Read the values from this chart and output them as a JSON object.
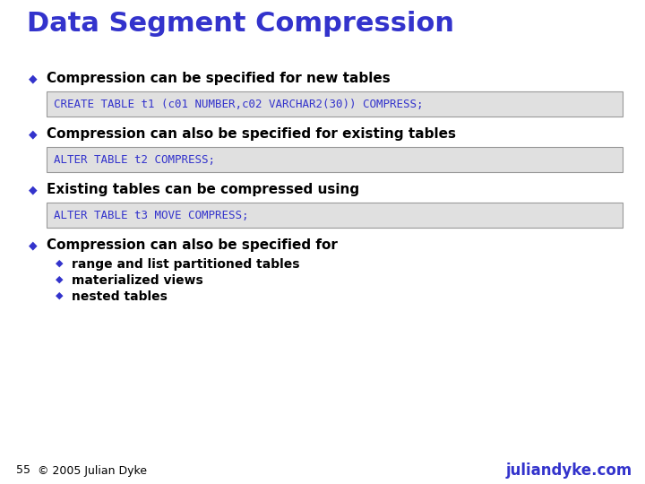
{
  "title": "Data Segment Compression",
  "title_color": "#3333cc",
  "title_fontsize": 22,
  "bg_color": "#ffffff",
  "bullet_color": "#3333cc",
  "bullet_char": "◆",
  "text_color": "#000000",
  "code_color": "#3333cc",
  "code_bg": "#e0e0e0",
  "code_border": "#999999",
  "bullets": [
    {
      "text": "Compression can be specified for new tables",
      "code": "CREATE TABLE t1 (c01 NUMBER,c02 VARCHAR2(30)) COMPRESS;"
    },
    {
      "text": "Compression can also be specified for existing tables",
      "code": "ALTER TABLE t2 COMPRESS;"
    },
    {
      "text": "Existing tables can be compressed using",
      "code": "ALTER TABLE t3 MOVE COMPRESS;"
    },
    {
      "text": "Compression can also be specified for",
      "code": null,
      "subbullets": [
        "range and list partitioned tables",
        "materialized views",
        "nested tables"
      ]
    }
  ],
  "footer_left_num": "55",
  "footer_left_text": "© 2005 Julian Dyke",
  "footer_right_text": "juliandyke.com",
  "footer_color": "#3333cc",
  "footer_num_color": "#000000"
}
